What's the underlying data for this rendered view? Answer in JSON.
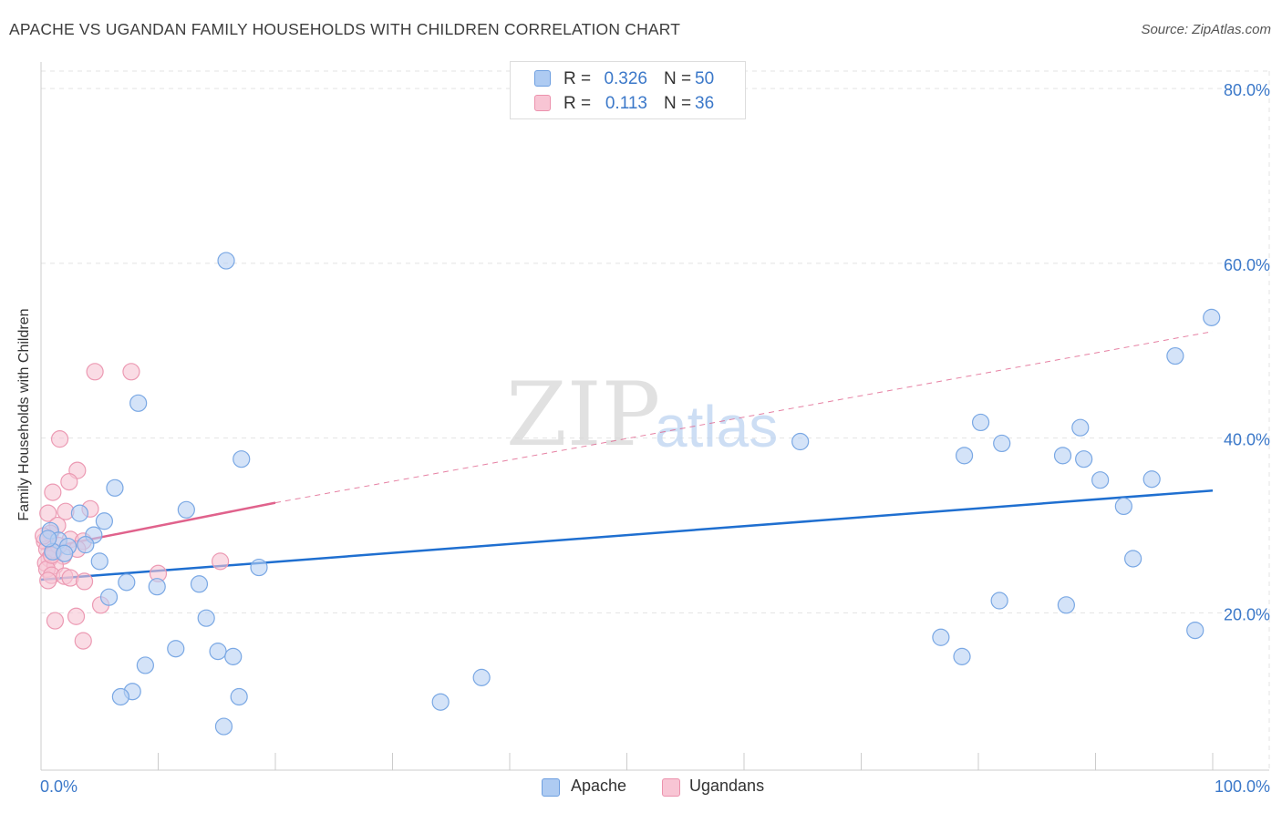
{
  "title": "APACHE VS UGANDAN FAMILY HOUSEHOLDS WITH CHILDREN CORRELATION CHART",
  "source": "Source: ZipAtlas.com",
  "watermark": {
    "zip": "ZIP",
    "atlas": "atlas"
  },
  "legend": {
    "rows": [
      {
        "r_label": "R =",
        "r_value": "0.326",
        "n_label": "N =",
        "n_value": "50",
        "color": "#aecbf2",
        "border": "#6e9fe0"
      },
      {
        "r_label": "R =",
        "r_value": "0.113",
        "n_label": "N =",
        "n_value": "36",
        "color": "#f8c5d4",
        "border": "#ec92ad"
      }
    ],
    "bottom": [
      {
        "label": "Apache",
        "color": "#aecbf2",
        "border": "#6e9fe0"
      },
      {
        "label": "Ugandans",
        "color": "#f8c5d4",
        "border": "#ec92ad"
      }
    ]
  },
  "chart_data": {
    "type": "scatter",
    "title": "APACHE VS UGANDAN FAMILY HOUSEHOLDS WITH CHILDREN CORRELATION CHART",
    "xlabel": "",
    "ylabel": "Family Households with Children",
    "xlim": [
      0,
      100
    ],
    "ylim": [
      2,
      82
    ],
    "x_tick_labels": [
      "0.0%",
      "100.0%"
    ],
    "y_ticks": [
      20,
      40,
      60,
      80
    ],
    "y_tick_labels": [
      "20.0%",
      "40.0%",
      "60.0%",
      "80.0%"
    ],
    "grid": true,
    "legend_position": "top-center",
    "series": [
      {
        "name": "Apache",
        "color": "#6fa3e6",
        "fill": "#b7d1f3",
        "stroke": "#7aa8e4",
        "trend_color": "#1f6fd0",
        "trend": {
          "x0": 0,
          "y0": 23.8,
          "x1": 100,
          "y1": 34.0
        },
        "points": [
          [
            15.8,
            60.3
          ],
          [
            8.3,
            44.0
          ],
          [
            17.1,
            37.6
          ],
          [
            6.3,
            34.3
          ],
          [
            12.4,
            31.8
          ],
          [
            3.3,
            31.4
          ],
          [
            5.4,
            30.5
          ],
          [
            4.5,
            28.9
          ],
          [
            0.8,
            29.4
          ],
          [
            1.5,
            28.3
          ],
          [
            2.3,
            27.6
          ],
          [
            1.0,
            27.0
          ],
          [
            5.0,
            25.9
          ],
          [
            18.6,
            25.2
          ],
          [
            7.3,
            23.5
          ],
          [
            9.9,
            23.0
          ],
          [
            13.5,
            23.3
          ],
          [
            5.8,
            21.8
          ],
          [
            14.1,
            19.4
          ],
          [
            11.5,
            15.9
          ],
          [
            15.1,
            15.6
          ],
          [
            16.4,
            15.0
          ],
          [
            8.9,
            14.0
          ],
          [
            7.8,
            11.0
          ],
          [
            6.8,
            10.4
          ],
          [
            16.9,
            10.4
          ],
          [
            15.6,
            7.0
          ],
          [
            34.1,
            9.8
          ],
          [
            37.6,
            12.6
          ],
          [
            64.8,
            39.6
          ],
          [
            80.2,
            41.8
          ],
          [
            82.0,
            39.4
          ],
          [
            78.8,
            38.0
          ],
          [
            87.2,
            38.0
          ],
          [
            88.7,
            41.2
          ],
          [
            89.0,
            37.6
          ],
          [
            90.4,
            35.2
          ],
          [
            94.8,
            35.3
          ],
          [
            92.4,
            32.2
          ],
          [
            93.2,
            26.2
          ],
          [
            96.8,
            49.4
          ],
          [
            99.9,
            53.8
          ],
          [
            81.8,
            21.4
          ],
          [
            87.5,
            20.9
          ],
          [
            76.8,
            17.2
          ],
          [
            78.6,
            15.0
          ],
          [
            98.5,
            18.0
          ],
          [
            3.8,
            27.8
          ],
          [
            2.0,
            26.8
          ],
          [
            0.6,
            28.5
          ]
        ]
      },
      {
        "name": "Ugandans",
        "color": "#e58aa6",
        "fill": "#f7c4d3",
        "stroke": "#ec9ab3",
        "trend_color": "#e0628c",
        "trend": {
          "x0": 0,
          "y0": 27.3,
          "x1": 20,
          "y1": 32.6
        },
        "trend_extension": {
          "x0": 20,
          "y0": 32.6,
          "x1": 100,
          "y1": 52.2
        },
        "points": [
          [
            4.6,
            47.6
          ],
          [
            7.7,
            47.6
          ],
          [
            1.6,
            39.9
          ],
          [
            3.1,
            36.3
          ],
          [
            2.4,
            35.0
          ],
          [
            1.0,
            33.8
          ],
          [
            2.1,
            31.6
          ],
          [
            0.6,
            31.4
          ],
          [
            4.2,
            31.9
          ],
          [
            1.4,
            30.0
          ],
          [
            0.8,
            29.1
          ],
          [
            0.3,
            28.2
          ],
          [
            2.5,
            28.4
          ],
          [
            3.6,
            28.2
          ],
          [
            0.5,
            27.3
          ],
          [
            1.1,
            27.0
          ],
          [
            1.9,
            26.5
          ],
          [
            0.7,
            26.2
          ],
          [
            3.1,
            27.3
          ],
          [
            0.4,
            25.7
          ],
          [
            1.2,
            25.4
          ],
          [
            0.5,
            25.0
          ],
          [
            0.9,
            24.3
          ],
          [
            2.0,
            24.2
          ],
          [
            2.5,
            24.0
          ],
          [
            0.6,
            23.7
          ],
          [
            3.7,
            23.6
          ],
          [
            15.3,
            25.9
          ],
          [
            10.0,
            24.5
          ],
          [
            5.1,
            20.9
          ],
          [
            3.0,
            19.6
          ],
          [
            1.2,
            19.1
          ],
          [
            3.6,
            16.8
          ],
          [
            0.2,
            28.8
          ],
          [
            1.5,
            27.7
          ],
          [
            0.9,
            26.6
          ]
        ]
      }
    ]
  }
}
